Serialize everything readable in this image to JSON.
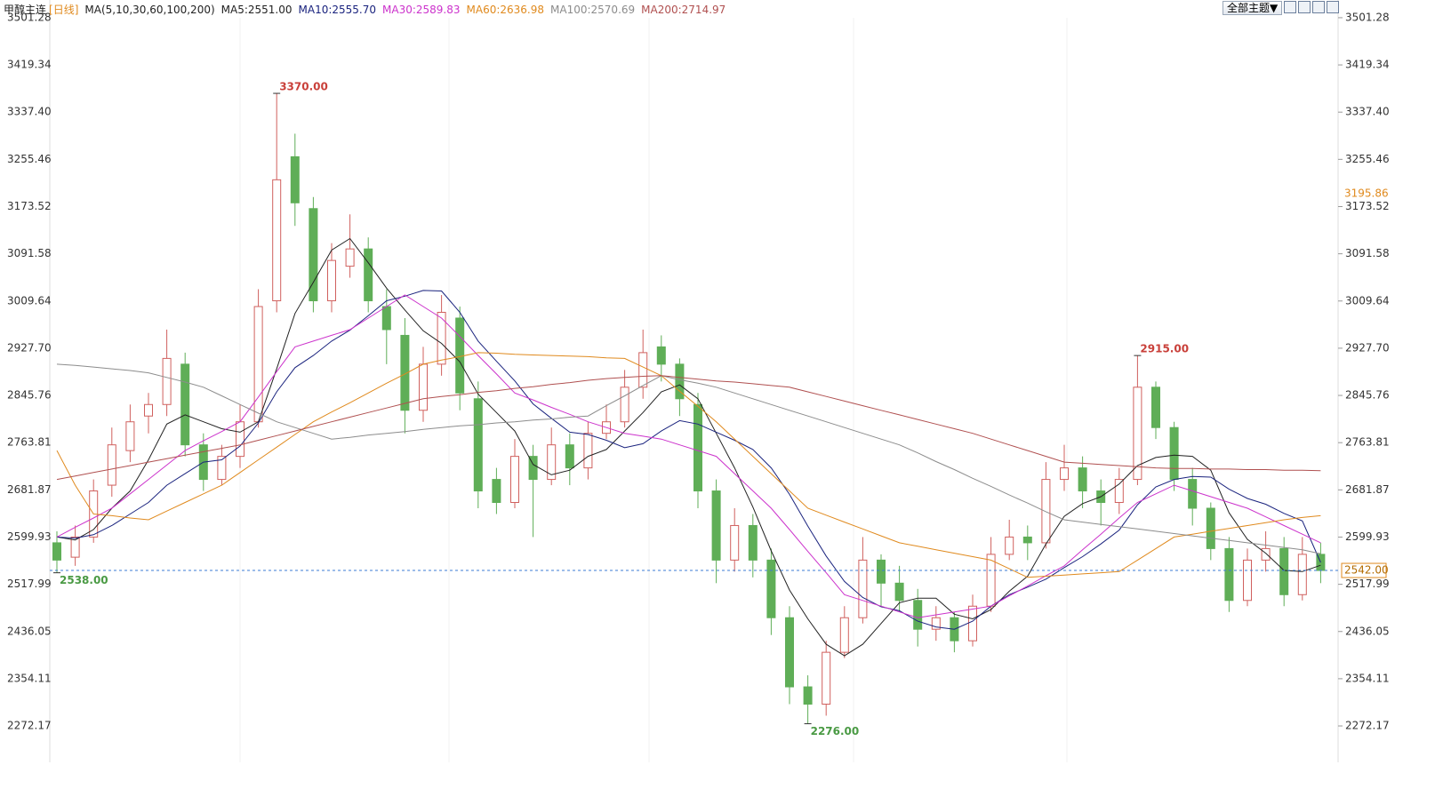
{
  "chart_data": {
    "type": "candlestick",
    "title": "甲醇主连",
    "period": "[日线]",
    "ma_label": "MA(5,10,30,60,100,200)",
    "toolbar_button": "全部主题▼",
    "up_color": "#d0605e",
    "down_color": "#5fae57",
    "ylim": [
      2209,
      3532
    ],
    "yticks": [
      3501.28,
      3419.34,
      {
        "value": 3337.4,
        "label": "3337.40"
      },
      3255.46,
      3173.52,
      3091.58,
      3009.64,
      {
        "value": 2927.7,
        "label": "2927.70"
      },
      2845.76,
      2763.81,
      2681.87,
      2599.93,
      2517.99,
      2436.05,
      2354.11,
      2272.17
    ],
    "candles": [
      [
        2590,
        2610,
        2538,
        2560
      ],
      [
        2565,
        2620,
        2550,
        2600
      ],
      [
        2600,
        2700,
        2590,
        2680
      ],
      [
        2690,
        2790,
        2670,
        2760
      ],
      [
        2750,
        2830,
        2730,
        2800
      ],
      [
        2810,
        2850,
        2780,
        2830
      ],
      [
        2830,
        2960,
        2810,
        2910
      ],
      [
        2900,
        2920,
        2740,
        2760
      ],
      [
        2760,
        2780,
        2680,
        2700
      ],
      [
        2700,
        2760,
        2690,
        2740
      ],
      [
        2740,
        2830,
        2720,
        2800
      ],
      [
        2800,
        3030,
        2790,
        3000
      ],
      [
        3010,
        3370,
        2990,
        3220
      ],
      [
        3260,
        3300,
        3140,
        3180
      ],
      [
        3170,
        3190,
        2990,
        3010
      ],
      [
        3010,
        3110,
        2990,
        3080
      ],
      [
        3070,
        3160,
        3050,
        3100
      ],
      [
        3100,
        3120,
        2990,
        3010
      ],
      [
        3000,
        3030,
        2900,
        2960
      ],
      [
        2950,
        2980,
        2780,
        2820
      ],
      [
        2820,
        2930,
        2800,
        2900
      ],
      [
        2900,
        3020,
        2880,
        2990
      ],
      [
        2980,
        3000,
        2820,
        2850
      ],
      [
        2840,
        2870,
        2650,
        2680
      ],
      [
        2700,
        2720,
        2640,
        2660
      ],
      [
        2660,
        2770,
        2650,
        2740
      ],
      [
        2740,
        2760,
        2600,
        2700
      ],
      [
        2700,
        2790,
        2690,
        2760
      ],
      [
        2760,
        2780,
        2690,
        2720
      ],
      [
        2720,
        2800,
        2700,
        2780
      ],
      [
        2780,
        2830,
        2770,
        2800
      ],
      [
        2800,
        2890,
        2790,
        2860
      ],
      [
        2860,
        2960,
        2840,
        2920
      ],
      [
        2930,
        2950,
        2870,
        2900
      ],
      [
        2900,
        2910,
        2810,
        2840
      ],
      [
        2830,
        2850,
        2650,
        2680
      ],
      [
        2680,
        2700,
        2520,
        2560
      ],
      [
        2560,
        2650,
        2540,
        2620
      ],
      [
        2620,
        2640,
        2530,
        2560
      ],
      [
        2560,
        2580,
        2430,
        2460
      ],
      [
        2460,
        2480,
        2310,
        2340
      ],
      [
        2340,
        2360,
        2276,
        2310
      ],
      [
        2310,
        2420,
        2290,
        2400
      ],
      [
        2400,
        2480,
        2390,
        2460
      ],
      [
        2460,
        2600,
        2450,
        2560
      ],
      [
        2560,
        2570,
        2480,
        2520
      ],
      [
        2520,
        2550,
        2470,
        2490
      ],
      [
        2490,
        2510,
        2410,
        2440
      ],
      [
        2440,
        2480,
        2420,
        2460
      ],
      [
        2460,
        2470,
        2400,
        2420
      ],
      [
        2420,
        2500,
        2410,
        2480
      ],
      [
        2480,
        2600,
        2470,
        2570
      ],
      [
        2570,
        2630,
        2560,
        2600
      ],
      [
        2600,
        2620,
        2560,
        2590
      ],
      [
        2590,
        2730,
        2580,
        2700
      ],
      [
        2700,
        2760,
        2680,
        2720
      ],
      [
        2720,
        2740,
        2650,
        2680
      ],
      [
        2680,
        2700,
        2620,
        2660
      ],
      [
        2660,
        2720,
        2640,
        2700
      ],
      [
        2700,
        2915,
        2690,
        2860
      ],
      [
        2860,
        2870,
        2770,
        2790
      ],
      [
        2790,
        2800,
        2680,
        2700
      ],
      [
        2700,
        2720,
        2620,
        2650
      ],
      [
        2650,
        2660,
        2560,
        2580
      ],
      [
        2580,
        2600,
        2470,
        2490
      ],
      [
        2490,
        2580,
        2480,
        2560
      ],
      [
        2560,
        2610,
        2540,
        2580
      ],
      [
        2580,
        2600,
        2480,
        2500
      ],
      [
        2500,
        2600,
        2490,
        2570
      ],
      [
        2570,
        2590,
        2520,
        2542
      ]
    ],
    "series": [
      {
        "name": "MA5:2551.00",
        "color": "#222222",
        "values": [
          2600,
          2595,
          2613,
          2650,
          2680,
          2734,
          2796,
          2812,
          2800,
          2788,
          2782,
          2800,
          2892,
          2988,
          3042,
          3098,
          3118,
          3076,
          3032,
          2994,
          2958,
          2936,
          2904,
          2848,
          2816,
          2784,
          2726,
          2708,
          2716,
          2740,
          2752,
          2784,
          2816,
          2852,
          2864,
          2840,
          2780,
          2720,
          2652,
          2576,
          2508,
          2458,
          2414,
          2394,
          2414,
          2450,
          2486,
          2494,
          2494,
          2466,
          2458,
          2474,
          2506,
          2532,
          2588,
          2636,
          2658,
          2670,
          2692,
          2724,
          2738,
          2742,
          2740,
          2716,
          2642,
          2596,
          2572,
          2542,
          2540,
          2551
        ]
      },
      {
        "name": "MA10:2555.70",
        "color": "#1a237e",
        "values": [
          2600,
          2598,
          2604,
          2620,
          2640,
          2660,
          2690,
          2710,
          2730,
          2734,
          2758,
          2798,
          2852,
          2894,
          2915,
          2940,
          2959,
          2984,
          3010,
          3018,
          3028,
          3027,
          2990,
          2940,
          2905,
          2871,
          2831,
          2806,
          2782,
          2778,
          2768,
          2755,
          2762,
          2784,
          2802,
          2796,
          2782,
          2768,
          2752,
          2720,
          2674,
          2619,
          2567,
          2523,
          2495,
          2479,
          2472,
          2454,
          2444,
          2440,
          2454,
          2480,
          2500,
          2513,
          2527,
          2547,
          2566,
          2588,
          2612,
          2656,
          2687,
          2700,
          2705,
          2704,
          2683,
          2667,
          2657,
          2641,
          2628,
          2556
        ]
      },
      {
        "name": "MA30:2589.83",
        "color": "#cc33cc",
        "values": [
          2600,
          2617,
          2633,
          2650,
          2675,
          2700,
          2725,
          2750,
          2767,
          2783,
          2800,
          2843,
          2887,
          2930,
          2940,
          2950,
          2960,
          2980,
          3000,
          3020,
          3000,
          2980,
          2948,
          2915,
          2883,
          2850,
          2838,
          2825,
          2813,
          2800,
          2790,
          2780,
          2775,
          2770,
          2760,
          2750,
          2740,
          2710,
          2680,
          2650,
          2613,
          2575,
          2538,
          2500,
          2490,
          2480,
          2470,
          2460,
          2465,
          2470,
          2475,
          2480,
          2498,
          2515,
          2533,
          2550,
          2578,
          2605,
          2633,
          2660,
          2675,
          2690,
          2680,
          2670,
          2660,
          2650,
          2635,
          2620,
          2605,
          2590
        ]
      },
      {
        "name": "MA60:2636.98",
        "color": "#e08a1e",
        "values": [
          2750,
          2690,
          2640,
          2637,
          2633,
          2630,
          2645,
          2660,
          2675,
          2690,
          2712,
          2734,
          2756,
          2778,
          2800,
          2817,
          2833,
          2850,
          2867,
          2883,
          2900,
          2907,
          2913,
          2920,
          2919,
          2917,
          2916,
          2915,
          2914,
          2913,
          2911,
          2910,
          2895,
          2880,
          2853,
          2827,
          2800,
          2770,
          2740,
          2710,
          2680,
          2650,
          2638,
          2626,
          2614,
          2602,
          2590,
          2584,
          2578,
          2572,
          2566,
          2560,
          2545,
          2530,
          2532,
          2534,
          2536,
          2538,
          2540,
          2560,
          2580,
          2600,
          2605,
          2610,
          2615,
          2620,
          2625,
          2630,
          2634,
          2637
        ]
      },
      {
        "name": "MA100:2570.69",
        "color": "#8c8c8c",
        "values": [
          2900,
          2898,
          2895,
          2892,
          2889,
          2885,
          2877,
          2869,
          2860,
          2845,
          2830,
          2815,
          2800,
          2790,
          2780,
          2770,
          2773,
          2777,
          2780,
          2783,
          2787,
          2790,
          2793,
          2795,
          2798,
          2800,
          2803,
          2805,
          2808,
          2810,
          2828,
          2845,
          2863,
          2880,
          2873,
          2867,
          2860,
          2850,
          2840,
          2830,
          2820,
          2810,
          2800,
          2790,
          2780,
          2770,
          2760,
          2746,
          2731,
          2717,
          2702,
          2688,
          2673,
          2659,
          2644,
          2630,
          2626,
          2622,
          2618,
          2614,
          2610,
          2606,
          2602,
          2598,
          2594,
          2590,
          2586,
          2582,
          2578,
          2571
        ]
      },
      {
        "name": "MA200:2714.97",
        "color": "#b05050",
        "values": [
          2700,
          2706,
          2712,
          2718,
          2724,
          2730,
          2736,
          2742,
          2748,
          2754,
          2760,
          2768,
          2776,
          2784,
          2792,
          2800,
          2808,
          2816,
          2824,
          2832,
          2840,
          2844,
          2847,
          2851,
          2854,
          2858,
          2861,
          2865,
          2868,
          2872,
          2875,
          2877,
          2879,
          2880,
          2877,
          2874,
          2871,
          2869,
          2866,
          2863,
          2860,
          2852,
          2844,
          2836,
          2828,
          2820,
          2812,
          2804,
          2796,
          2788,
          2780,
          2770,
          2760,
          2750,
          2740,
          2730,
          2728,
          2726,
          2724,
          2722,
          2720,
          2719,
          2719,
          2718,
          2718,
          2717,
          2717,
          2716,
          2716,
          2715
        ]
      }
    ],
    "annotations": [
      {
        "text": "3370.00",
        "value": 3370,
        "color": "#c9403a"
      },
      {
        "text": "2915.00",
        "value": 2915,
        "color": "#c9403a"
      },
      {
        "text": "2276.00",
        "value": 2276,
        "color": "#4a9a44"
      },
      {
        "text": "2538.00",
        "value": 2538,
        "color": "#4a9a44"
      }
    ],
    "last_price": {
      "value": 2542,
      "label": "2542.00",
      "color": "#3b7bd4"
    },
    "marker": {
      "value": 3195.86,
      "label": "3195.86",
      "color": "#e08a1e"
    }
  }
}
